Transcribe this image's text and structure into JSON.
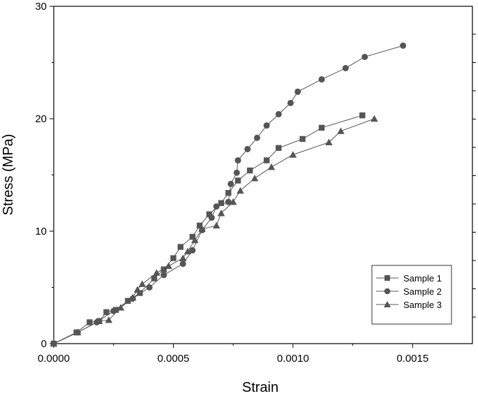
{
  "chart_data": {
    "type": "line",
    "xlabel": "Strain",
    "ylabel": "Stress (MPa)",
    "xlim": [
      0,
      0.00175
    ],
    "ylim": [
      0,
      30
    ],
    "x_ticks": [
      0,
      0.0005,
      0.001,
      0.0015
    ],
    "x_tick_labels": [
      "0.0000",
      "0.0005",
      "0.0010",
      "0.0015"
    ],
    "y_ticks": [
      0,
      10,
      20,
      30
    ],
    "y_tick_labels": [
      "0",
      "10",
      "20",
      "30"
    ],
    "grid": false,
    "legend_position": "bottom-right",
    "series": [
      {
        "name": "Sample 1",
        "marker": "square",
        "color": "#555555",
        "points": [
          [
            0,
            0
          ],
          [
            9.5e-05,
            1.0
          ],
          [
            0.00015,
            1.9
          ],
          [
            0.00019,
            2.0
          ],
          [
            0.00022,
            2.8
          ],
          [
            0.00026,
            3.0
          ],
          [
            0.00031,
            3.8
          ],
          [
            0.00036,
            4.5
          ],
          [
            0.00042,
            5.8
          ],
          [
            0.00046,
            6.6
          ],
          [
            0.0005,
            7.6
          ],
          [
            0.00053,
            8.6
          ],
          [
            0.00058,
            9.5
          ],
          [
            0.00061,
            10.5
          ],
          [
            0.00065,
            11.5
          ],
          [
            0.0007,
            12.5
          ],
          [
            0.00073,
            13.4
          ],
          [
            0.00077,
            14.5
          ],
          [
            0.00082,
            15.4
          ],
          [
            0.00089,
            16.3
          ],
          [
            0.00094,
            17.4
          ],
          [
            0.00104,
            18.2
          ],
          [
            0.00112,
            19.2
          ],
          [
            0.00129,
            20.3
          ]
        ]
      },
      {
        "name": "Sample 2",
        "marker": "circle",
        "color": "#555555",
        "points": [
          [
            0,
            0
          ],
          [
            0.0001,
            1.0
          ],
          [
            0.00018,
            1.9
          ],
          [
            0.00025,
            2.9
          ],
          [
            0.00033,
            4.0
          ],
          [
            0.0004,
            5.0
          ],
          [
            0.00046,
            6.1
          ],
          [
            0.00054,
            7.1
          ],
          [
            0.00058,
            8.3
          ],
          [
            0.00062,
            10.1
          ],
          [
            0.00066,
            11.2
          ],
          [
            0.00068,
            12.2
          ],
          [
            0.00073,
            12.6
          ],
          [
            0.00074,
            14.2
          ],
          [
            0.000765,
            15.2
          ],
          [
            0.00077,
            16.3
          ],
          [
            0.00081,
            17.3
          ],
          [
            0.00085,
            18.3
          ],
          [
            0.00089,
            19.4
          ],
          [
            0.00094,
            20.4
          ],
          [
            0.00099,
            21.4
          ],
          [
            0.00102,
            22.4
          ],
          [
            0.00112,
            23.5
          ],
          [
            0.00122,
            24.5
          ],
          [
            0.0013,
            25.5
          ],
          [
            0.00146,
            26.5
          ]
        ]
      },
      {
        "name": "Sample 3",
        "marker": "triangle",
        "color": "#555555",
        "points": [
          [
            0,
            0
          ],
          [
            0.0001,
            1.0
          ],
          [
            0.00019,
            2.0
          ],
          [
            0.00023,
            2.1
          ],
          [
            0.00028,
            3.2
          ],
          [
            0.00033,
            4.1
          ],
          [
            0.00035,
            4.8
          ],
          [
            0.00037,
            5.3
          ],
          [
            0.00043,
            6.3
          ],
          [
            0.00048,
            6.9
          ],
          [
            0.00054,
            7.6
          ],
          [
            0.00056,
            8.2
          ],
          [
            0.00059,
            9.2
          ],
          [
            0.00062,
            10.2
          ],
          [
            0.00068,
            10.5
          ],
          [
            0.0007,
            11.6
          ],
          [
            0.00075,
            12.6
          ],
          [
            0.00078,
            13.6
          ],
          [
            0.00084,
            14.7
          ],
          [
            0.00091,
            15.7
          ],
          [
            0.001,
            16.8
          ],
          [
            0.00115,
            17.9
          ],
          [
            0.0012,
            18.9
          ],
          [
            0.00134,
            20.0
          ]
        ]
      }
    ]
  }
}
